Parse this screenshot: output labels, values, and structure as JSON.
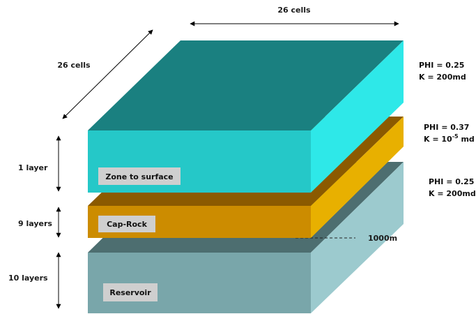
{
  "dimensions": {
    "width_cells": "26 cells",
    "depth_cells": "26 cells"
  },
  "zones": [
    {
      "name": "Zone to surface",
      "layers": "1 layer",
      "phi": "PHI = 0.25",
      "k_prefix": "K = 200md",
      "k_exp": "",
      "k_suffix": "",
      "colors": {
        "top": "#1a8080",
        "front": "#25c8c8",
        "side": "#2ee8e8"
      }
    },
    {
      "name": "Cap-Rock",
      "layers": "9 layers",
      "phi": "PHI = 0.37",
      "k_prefix": "K = 10",
      "k_exp": "-5",
      "k_suffix": " md",
      "colors": {
        "top": "#8b5a00",
        "front": "#cc8c00",
        "side": "#e8b000"
      }
    },
    {
      "name": "Reservoir",
      "layers": "10 layers",
      "phi": "PHI = 0.25",
      "k_prefix": "K = 200md",
      "k_exp": "",
      "k_suffix": "",
      "colors": {
        "top": "#4d6e70",
        "front": "#79a6aa",
        "side": "#9ccace"
      }
    }
  ],
  "depth_marker": "1000m"
}
